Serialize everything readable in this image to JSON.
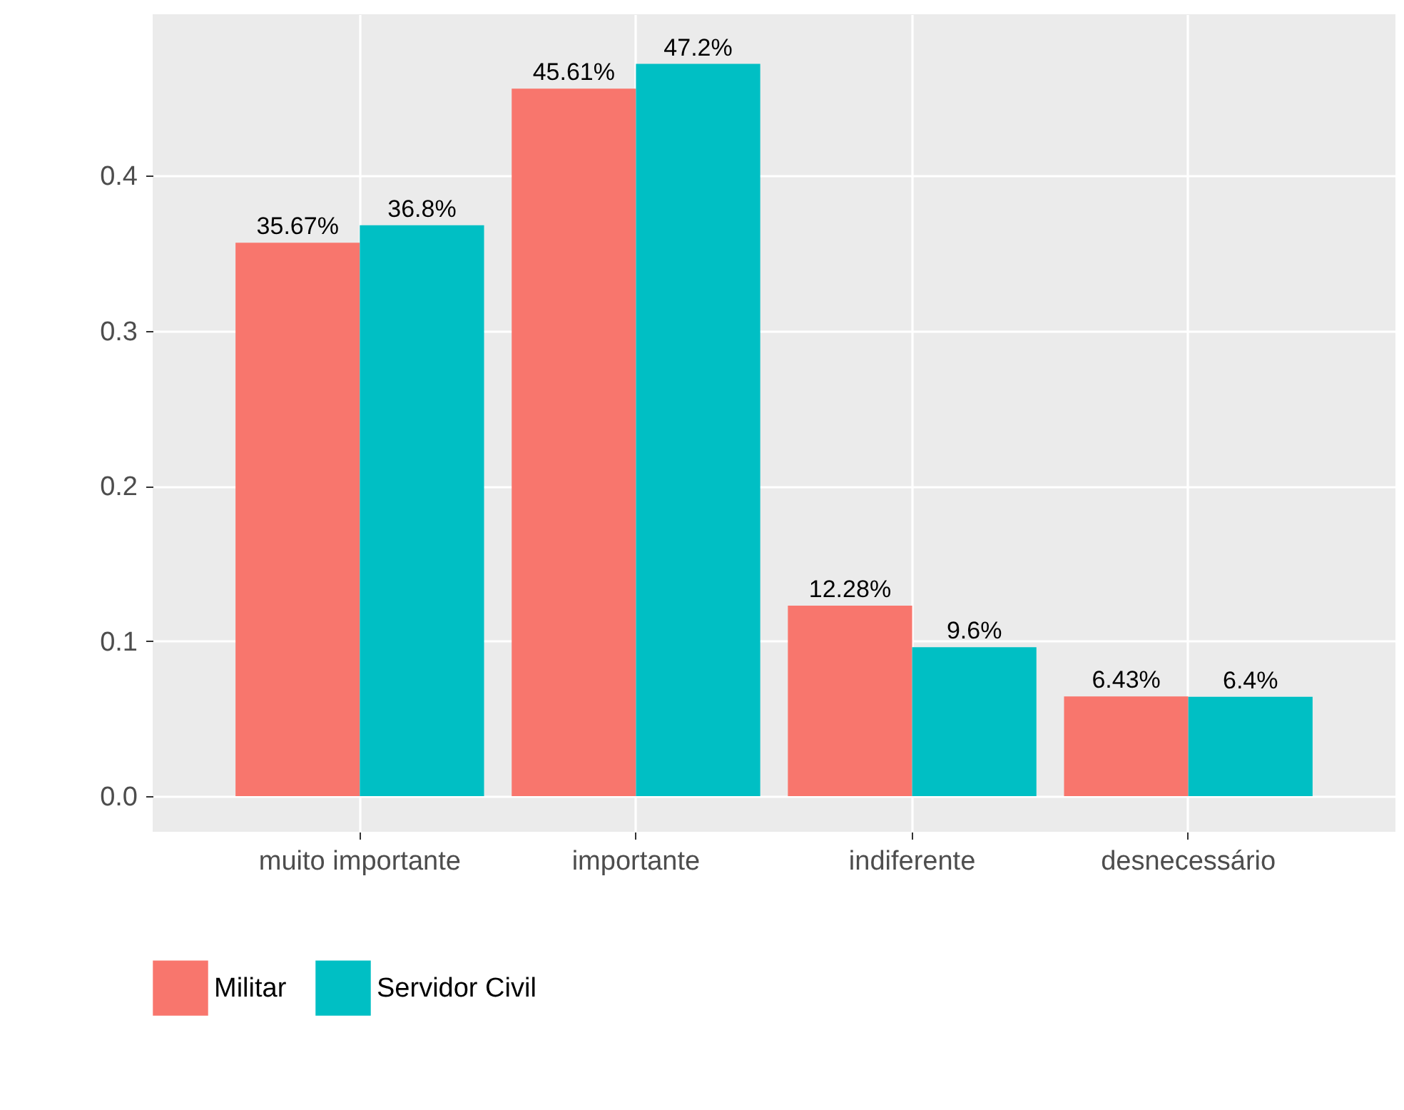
{
  "chart_data": {
    "type": "bar",
    "categories": [
      "muito importante",
      "importante",
      "indiferente",
      "desnecessário"
    ],
    "series": [
      {
        "name": "Militar",
        "color": "#f8766d",
        "values": [
          0.3567,
          0.4561,
          0.1228,
          0.0643
        ],
        "value_labels": [
          "35.67%",
          "45.61%",
          "12.28%",
          "6.43%"
        ]
      },
      {
        "name": "Servidor Civil",
        "color": "#00bfc4",
        "values": [
          0.368,
          0.472,
          0.096,
          0.064
        ],
        "value_labels": [
          "36.8%",
          "47.2%",
          "9.6%",
          "6.4%"
        ]
      }
    ],
    "ylim": [
      -0.023,
      0.504
    ],
    "yticks": [
      {
        "value": 0,
        "label": "0.0"
      },
      0.1,
      0.2,
      0.3,
      0.4
    ],
    "grid": true,
    "legend": "bottom"
  }
}
